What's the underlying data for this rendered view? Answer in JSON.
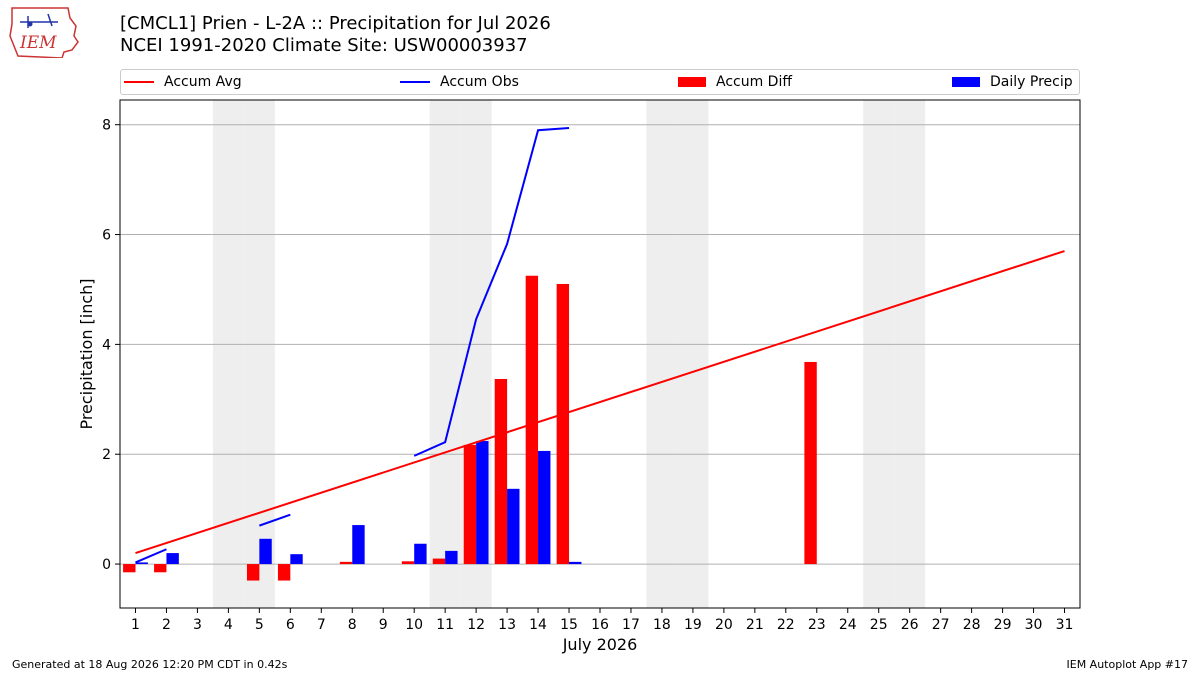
{
  "header": {
    "title_line1": "[CMCL1] Prien - L-2A :: Precipitation for Jul 2026",
    "title_line2": "NCEI 1991-2020 Climate Site: USW00003937"
  },
  "logo": {
    "text": "IEM",
    "icon": "iem-iowa-logo"
  },
  "footer": {
    "left": "Generated at 18 Aug 2026 12:20 PM CDT in 0.42s",
    "right": "IEM Autoplot App #17"
  },
  "colors": {
    "avg": "#ff0000",
    "obs": "#0000ff",
    "diff": "#ff0000",
    "daily": "#0000ff",
    "weekend": "#eeeeee"
  },
  "chart_data": {
    "type": "bar",
    "xlabel": "July 2026",
    "ylabel": "Precipitation [inch]",
    "xlim": [
      0.5,
      31.5
    ],
    "ylim": [
      -0.8,
      8.45
    ],
    "yticks": [
      0,
      2,
      4,
      6,
      8
    ],
    "xticks": [
      1,
      2,
      3,
      4,
      5,
      6,
      7,
      8,
      9,
      10,
      11,
      12,
      13,
      14,
      15,
      16,
      17,
      18,
      19,
      20,
      21,
      22,
      23,
      24,
      25,
      26,
      27,
      28,
      29,
      30,
      31
    ],
    "grid": "horizontal",
    "legend_position": "top",
    "weekend_days": [
      4,
      5,
      11,
      12,
      18,
      19,
      25,
      26
    ],
    "series": [
      {
        "name": "Accum Avg",
        "kind": "line",
        "x": [
          1,
          31
        ],
        "values": [
          0.2,
          5.7
        ]
      },
      {
        "name": "Accum Obs",
        "kind": "line",
        "segments": [
          {
            "x": [
              1,
              2
            ],
            "values": [
              0.03,
              0.27
            ]
          },
          {
            "x": [
              5,
              6
            ],
            "values": [
              0.7,
              0.9
            ]
          },
          {
            "x": [
              10,
              11,
              12,
              13,
              14,
              15
            ],
            "values": [
              1.97,
              2.22,
              4.46,
              5.83,
              7.9,
              7.94
            ]
          }
        ]
      },
      {
        "name": "Accum Diff",
        "kind": "bar",
        "x": [
          1,
          2,
          5,
          6,
          8,
          10,
          11,
          12,
          13,
          14,
          15,
          23
        ],
        "values": [
          -0.15,
          -0.15,
          -0.3,
          -0.3,
          0.04,
          0.05,
          0.1,
          2.17,
          3.37,
          5.25,
          5.1,
          3.68
        ]
      },
      {
        "name": "Daily Precip",
        "kind": "bar",
        "x": [
          1,
          2,
          5,
          6,
          8,
          10,
          11,
          12,
          13,
          14,
          15
        ],
        "values": [
          0.03,
          0.2,
          0.46,
          0.18,
          0.71,
          0.37,
          0.24,
          2.24,
          1.37,
          2.06,
          0.04
        ]
      }
    ]
  }
}
